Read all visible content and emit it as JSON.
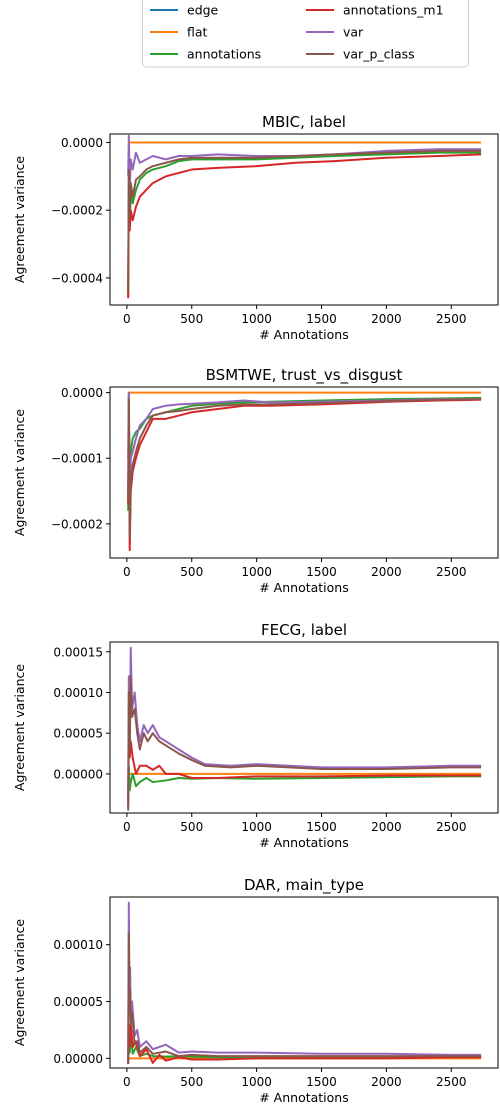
{
  "legend": {
    "entries": [
      {
        "name": "edge",
        "color": "#1f77b4"
      },
      {
        "name": "flat",
        "color": "#ff7f0e"
      },
      {
        "name": "annotations",
        "color": "#2ca02c"
      },
      {
        "name": "annotations_m1",
        "color": "#d62728"
      },
      {
        "name": "var",
        "color": "#9467bd"
      },
      {
        "name": "var_p_class",
        "color": "#8c564b"
      }
    ],
    "placement": "top-center, two columns"
  },
  "chart_data": [
    {
      "type": "line",
      "title": "MBIC, label",
      "xlabel": "# Annotations",
      "ylabel": "Agreement variance",
      "xlim": [
        -130,
        2860
      ],
      "ylim": [
        -0.00048,
        2.5e-05
      ],
      "xticks": [
        0,
        500,
        1000,
        1500,
        2000,
        2500
      ],
      "xtick_labels": [
        "0",
        "500",
        "1000",
        "1500",
        "2000",
        "2500"
      ],
      "yticks": [
        0.0,
        -0.0002,
        -0.0004
      ],
      "ytick_labels": [
        "0.0000",
        "−0.0002",
        "−0.0004"
      ],
      "grid": false,
      "series": [
        {
          "name": "flat",
          "color": "#ff7f0e",
          "x": [
            10,
            2730
          ],
          "y": [
            0.0,
            0.0
          ]
        },
        {
          "name": "annotations",
          "color": "#2ca02c",
          "x": [
            10,
            15,
            22,
            30,
            45,
            70,
            100,
            150,
            200,
            300,
            400,
            500,
            700,
            1000,
            1300,
            1600,
            2000,
            2400,
            2730
          ],
          "y": [
            -0.00045,
            -0.0001,
            -0.00025,
            -0.00013,
            -0.00018,
            -0.00014,
            -0.00011,
            -9e-05,
            -8e-05,
            -7e-05,
            -5.5e-05,
            -5e-05,
            -5e-05,
            -5e-05,
            -4.5e-05,
            -4e-05,
            -3.5e-05,
            -3e-05,
            -3e-05
          ]
        },
        {
          "name": "annotations_m1",
          "color": "#d62728",
          "x": [
            10,
            15,
            22,
            30,
            45,
            70,
            100,
            150,
            200,
            300,
            400,
            500,
            700,
            1000,
            1300,
            1600,
            2000,
            2400,
            2730
          ],
          "y": [
            -0.00046,
            -0.00015,
            -0.00026,
            -0.0002,
            -0.00023,
            -0.00019,
            -0.00016,
            -0.00014,
            -0.00012,
            -0.0001,
            -9e-05,
            -8e-05,
            -7.5e-05,
            -7e-05,
            -6e-05,
            -5.5e-05,
            -4.5e-05,
            -4e-05,
            -3.5e-05
          ]
        },
        {
          "name": "var",
          "color": "#9467bd",
          "x": [
            10,
            15,
            22,
            30,
            45,
            70,
            100,
            150,
            200,
            300,
            400,
            500,
            700,
            1000,
            1300,
            1600,
            2000,
            2400,
            2730
          ],
          "y": [
            -0.0001,
            2e-05,
            -0.00015,
            -5e-05,
            -8e-05,
            -3e-05,
            -6e-05,
            -5e-05,
            -4e-05,
            -5e-05,
            -4e-05,
            -4e-05,
            -3.5e-05,
            -4e-05,
            -4e-05,
            -3.5e-05,
            -2.5e-05,
            -2e-05,
            -2e-05
          ]
        },
        {
          "name": "var_p_class",
          "color": "#8c564b",
          "x": [
            10,
            15,
            22,
            30,
            45,
            70,
            100,
            150,
            200,
            300,
            400,
            500,
            700,
            1000,
            1300,
            1600,
            2000,
            2400,
            2730
          ],
          "y": [
            -0.00044,
            -8e-05,
            -0.00022,
            -0.00012,
            -0.00016,
            -0.00011,
            -0.0001,
            -8e-05,
            -7e-05,
            -6e-05,
            -5e-05,
            -4.5e-05,
            -4.5e-05,
            -4.5e-05,
            -4e-05,
            -3.5e-05,
            -3e-05,
            -2.5e-05,
            -2.5e-05
          ]
        }
      ]
    },
    {
      "type": "line",
      "title": "BSMTWE, trust_vs_disgust",
      "xlabel": "# Annotations",
      "ylabel": "Agreement variance",
      "xlim": [
        -130,
        2860
      ],
      "ylim": [
        -0.000252,
        8.5e-06
      ],
      "xticks": [
        0,
        500,
        1000,
        1500,
        2000,
        2500
      ],
      "xtick_labels": [
        "0",
        "500",
        "1000",
        "1500",
        "2000",
        "2500"
      ],
      "yticks": [
        0.0,
        -0.0001,
        -0.0002
      ],
      "ytick_labels": [
        "0.0000",
        "−0.0001",
        "−0.0002"
      ],
      "grid": false,
      "series": [
        {
          "name": "flat",
          "color": "#ff7f0e",
          "x": [
            10,
            2730
          ],
          "y": [
            0.0,
            0.0
          ]
        },
        {
          "name": "annotations",
          "color": "#2ca02c",
          "x": [
            10,
            15,
            22,
            30,
            45,
            70,
            100,
            150,
            200,
            300,
            400,
            500,
            700,
            900,
            1100,
            1500,
            2000,
            2400,
            2730
          ],
          "y": [
            -0.00018,
            -5e-05,
            -0.0001,
            -9e-05,
            -7e-05,
            -6e-05,
            -5.5e-05,
            -4e-05,
            -3.5e-05,
            -3e-05,
            -2.5e-05,
            -2e-05,
            -1.7e-05,
            -1.5e-05,
            -1.4e-05,
            -1.2e-05,
            -1e-05,
            -9e-06,
            -8e-06
          ]
        },
        {
          "name": "annotations_m1",
          "color": "#d62728",
          "x": [
            10,
            15,
            22,
            30,
            45,
            70,
            100,
            150,
            200,
            300,
            400,
            500,
            700,
            900,
            1100,
            1500,
            2000,
            2400,
            2730
          ],
          "y": [
            -0.00017,
            0.0,
            -0.00024,
            -0.00015,
            -0.00012,
            -0.0001,
            -8e-05,
            -6e-05,
            -4e-05,
            -4e-05,
            -3.5e-05,
            -3e-05,
            -2.5e-05,
            -2e-05,
            -2e-05,
            -1.8e-05,
            -1.4e-05,
            -1.2e-05,
            -1.1e-05
          ]
        },
        {
          "name": "var",
          "color": "#9467bd",
          "x": [
            10,
            15,
            22,
            30,
            45,
            70,
            100,
            150,
            200,
            300,
            400,
            500,
            700,
            900,
            1100,
            1500,
            2000,
            2400,
            2730
          ],
          "y": [
            -0.0001,
            0.0,
            -0.00014,
            -0.0001,
            -9e-05,
            -7e-05,
            -5e-05,
            -4e-05,
            -2.5e-05,
            -2e-05,
            -1.8e-05,
            -1.7e-05,
            -1.5e-05,
            -1.2e-05,
            -1.5e-05,
            -1.4e-05,
            -1.2e-05,
            -1e-05,
            -1e-05
          ]
        },
        {
          "name": "var_p_class",
          "color": "#8c564b",
          "x": [
            10,
            15,
            22,
            30,
            45,
            70,
            100,
            150,
            200,
            300,
            400,
            500,
            700,
            900,
            1100,
            1500,
            2000,
            2400,
            2730
          ],
          "y": [
            -0.00016,
            -1e-05,
            -0.00022,
            -0.00013,
            -0.00011,
            -9e-05,
            -7e-05,
            -5e-05,
            -3.5e-05,
            -3e-05,
            -2.8e-05,
            -2.5e-05,
            -2e-05,
            -1.8e-05,
            -1.8e-05,
            -1.6e-05,
            -1.3e-05,
            -1.1e-05,
            -1e-05
          ]
        }
      ]
    },
    {
      "type": "line",
      "title": "FECG, label",
      "xlabel": "# Annotations",
      "ylabel": "Agreement variance",
      "xlim": [
        -130,
        2860
      ],
      "ylim": [
        -4.8e-05,
        0.000162
      ],
      "xticks": [
        0,
        500,
        1000,
        1500,
        2000,
        2500
      ],
      "xtick_labels": [
        "0",
        "500",
        "1000",
        "1500",
        "2000",
        "2500"
      ],
      "yticks": [
        0.00015,
        0.0001,
        5e-05,
        0.0
      ],
      "ytick_labels": [
        "0.00015",
        "0.00010",
        "0.00005",
        "0.00000"
      ],
      "grid": false,
      "series": [
        {
          "name": "flat",
          "color": "#ff7f0e",
          "x": [
            10,
            2730
          ],
          "y": [
            0.0,
            0.0
          ]
        },
        {
          "name": "annotations",
          "color": "#2ca02c",
          "x": [
            10,
            15,
            22,
            30,
            45,
            70,
            100,
            150,
            200,
            300,
            400,
            500,
            700,
            1000,
            1500,
            2000,
            2500,
            2730
          ],
          "y": [
            -4e-05,
            1e-05,
            -2e-05,
            -1e-05,
            0.0,
            -1.5e-05,
            -1e-05,
            -5e-06,
            -1e-05,
            -8e-06,
            -5e-06,
            -6e-06,
            -5e-06,
            -6e-06,
            -5e-06,
            -4e-06,
            -3e-06,
            -3e-06
          ]
        },
        {
          "name": "annotations_m1",
          "color": "#d62728",
          "x": [
            10,
            15,
            22,
            30,
            45,
            70,
            100,
            150,
            200,
            250,
            300,
            400,
            500,
            700,
            1000,
            1500,
            2000,
            2500,
            2730
          ],
          "y": [
            -3e-05,
            5e-05,
            2e-05,
            4e-05,
            2e-05,
            0.0,
            1e-05,
            1e-05,
            5e-06,
            1e-05,
            0.0,
            0.0,
            -5e-06,
            -5e-06,
            -3e-06,
            -3e-06,
            -2e-06,
            -2e-06,
            -2e-06
          ]
        },
        {
          "name": "var",
          "color": "#9467bd",
          "x": [
            10,
            15,
            22,
            30,
            40,
            60,
            80,
            100,
            130,
            160,
            200,
            250,
            300,
            400,
            500,
            600,
            800,
            1000,
            1500,
            2000,
            2500,
            2730
          ],
          "y": [
            -4e-05,
            0.00012,
            4e-05,
            0.000155,
            8e-05,
            0.0001,
            6e-05,
            4e-05,
            6e-05,
            5e-05,
            6e-05,
            4.5e-05,
            4e-05,
            3e-05,
            2e-05,
            1.2e-05,
            1e-05,
            1.2e-05,
            8e-06,
            8e-06,
            1e-05,
            1e-05
          ]
        },
        {
          "name": "var_p_class",
          "color": "#8c564b",
          "x": [
            10,
            15,
            22,
            30,
            40,
            60,
            80,
            100,
            130,
            160,
            200,
            250,
            300,
            400,
            500,
            600,
            800,
            1000,
            1500,
            2000,
            2500,
            2730
          ],
          "y": [
            -4.5e-05,
            0.0001,
            3e-05,
            0.00012,
            7e-05,
            8e-05,
            5e-05,
            3e-05,
            5e-05,
            4e-05,
            5e-05,
            4e-05,
            3.5e-05,
            2.5e-05,
            1.7e-05,
            1e-05,
            8e-06,
            1e-05,
            6e-06,
            6e-06,
            8e-06,
            8e-06
          ]
        }
      ]
    },
    {
      "type": "line",
      "title": "DAR, main_type",
      "xlabel": "# Annotations",
      "ylabel": "Agreement variance",
      "xlim": [
        -130,
        2860
      ],
      "ylim": [
        -8.5e-06,
        0.000142
      ],
      "xticks": [
        0,
        500,
        1000,
        1500,
        2000,
        2500
      ],
      "xtick_labels": [
        "0",
        "500",
        "1000",
        "1500",
        "2000",
        "2500"
      ],
      "yticks": [
        0.0001,
        5e-05,
        0.0
      ],
      "ytick_labels": [
        "0.00010",
        "0.00005",
        "0.00000"
      ],
      "grid": false,
      "series": [
        {
          "name": "flat",
          "color": "#ff7f0e",
          "x": [
            10,
            2730
          ],
          "y": [
            0.0,
            0.0
          ]
        },
        {
          "name": "annotations",
          "color": "#2ca02c",
          "x": [
            10,
            15,
            22,
            30,
            45,
            70,
            100,
            150,
            200,
            300,
            400,
            500,
            700,
            1000,
            1500,
            2000,
            2500,
            2730
          ],
          "y": [
            -4e-06,
            1e-05,
            5e-06,
            2e-05,
            4e-06,
            1e-05,
            2e-06,
            4e-06,
            2e-06,
            1.5e-06,
            2e-06,
            1.5e-06,
            1e-06,
            1e-06,
            1e-06,
            1e-06,
            1e-06,
            1e-06
          ]
        },
        {
          "name": "annotations_m1",
          "color": "#d62728",
          "x": [
            10,
            15,
            22,
            30,
            45,
            70,
            100,
            150,
            200,
            250,
            300,
            400,
            500,
            700,
            1000,
            1500,
            2000,
            2500,
            2730
          ],
          "y": [
            -5e-06,
            3e-05,
            1e-05,
            3e-05,
            1e-05,
            1.5e-05,
            2e-06,
            8e-06,
            -4e-06,
            3e-06,
            -2e-06,
            1e-06,
            -1e-06,
            -1e-06,
            0.0,
            0.0,
            0.0,
            1e-06,
            1e-06
          ]
        },
        {
          "name": "var",
          "color": "#9467bd",
          "x": [
            10,
            15,
            20,
            25,
            30,
            40,
            60,
            80,
            100,
            150,
            200,
            300,
            400,
            500,
            700,
            1000,
            1500,
            2000,
            2500,
            2730
          ],
          "y": [
            -3e-06,
            0.000137,
            6e-05,
            8e-05,
            4e-05,
            5e-05,
            2e-05,
            2.5e-05,
            1e-05,
            1.5e-05,
            8e-06,
            1.2e-05,
            5e-06,
            6e-06,
            5e-06,
            5e-06,
            4e-06,
            4e-06,
            3e-06,
            3e-06
          ]
        },
        {
          "name": "var_p_class",
          "color": "#8c564b",
          "x": [
            10,
            15,
            20,
            25,
            30,
            40,
            60,
            80,
            100,
            150,
            200,
            300,
            400,
            500,
            700,
            1000,
            1500,
            2000,
            2500,
            2730
          ],
          "y": [
            -5e-06,
            0.00011,
            4e-05,
            6e-05,
            3e-05,
            4e-05,
            1.2e-05,
            1.5e-05,
            5e-06,
            1e-05,
            4e-06,
            6e-06,
            2e-06,
            3e-06,
            2e-06,
            2e-06,
            2e-06,
            2e-06,
            2e-06,
            2e-06
          ]
        }
      ]
    }
  ]
}
